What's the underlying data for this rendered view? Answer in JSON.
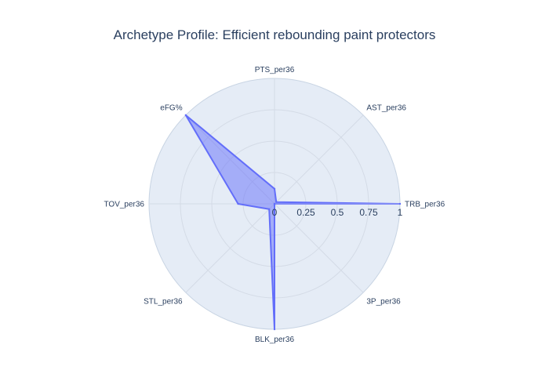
{
  "chart_data": {
    "type": "radar",
    "title": "Archetype Profile: Efficient rebounding paint protectors",
    "categories": [
      "PTS_per36",
      "AST_per36",
      "TRB_per36",
      "3P_per36",
      "BLK_per36",
      "STL_per36",
      "TOV_per36",
      "eFG%"
    ],
    "series": [
      {
        "values": [
          0.12,
          0.02,
          1.0,
          0.0,
          1.0,
          0.06,
          0.29,
          1.0
        ]
      }
    ],
    "radial_range": [
      0,
      1
    ],
    "radial_ticks": [
      "0",
      "0.25",
      "0.5",
      "0.75",
      "1"
    ],
    "radial_tick_values": [
      0,
      0.25,
      0.5,
      0.75,
      1
    ],
    "grid": true,
    "colors": {
      "polar_background": "#e5ecf6",
      "grid": "#ffffff",
      "fill": "#636efa",
      "fill_opacity": 0.5,
      "line": "#636efa",
      "text": "#2a3f5f"
    }
  }
}
